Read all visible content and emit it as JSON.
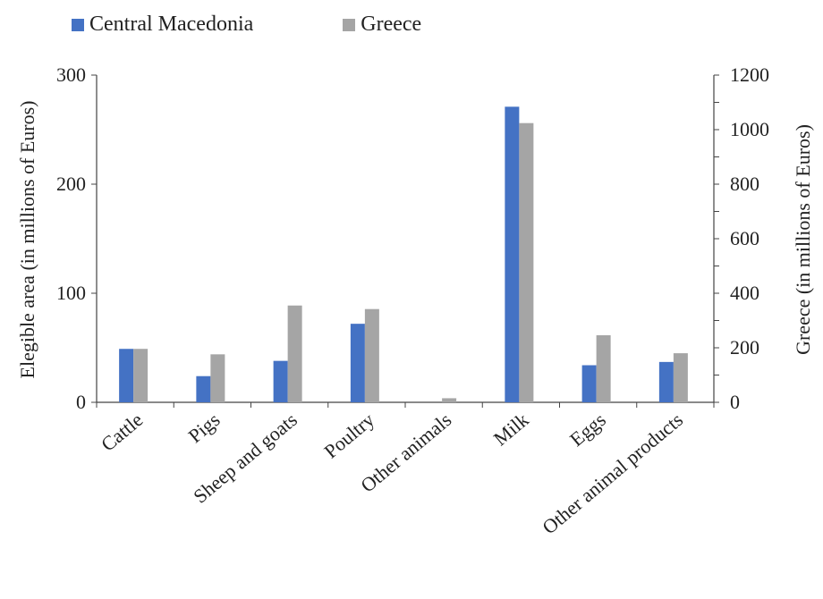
{
  "chart_data": {
    "type": "bar",
    "categories": [
      "Cattle",
      "Pigs",
      "Sheep and goats",
      "Poultry",
      "Other animals",
      "Milk",
      "Eggs",
      "Other animal products"
    ],
    "series": [
      {
        "name": "Central Macedonia",
        "axis": "left",
        "color": "#4472c4",
        "values": [
          49,
          24,
          38,
          72,
          0,
          271,
          34,
          37
        ]
      },
      {
        "name": "Greece",
        "axis": "right",
        "color": "#a5a5a5",
        "values": [
          196,
          176,
          355,
          342,
          15,
          1024,
          246,
          180
        ]
      }
    ],
    "ylabel": "Elegible area (in millions of Euros)",
    "y2label": "Greece (in millions of Euros)",
    "ylim": [
      0,
      300
    ],
    "y2lim": [
      0,
      1200
    ],
    "yticks": [
      "0",
      "100",
      "200",
      "300"
    ],
    "y2ticks": [
      "0",
      "200",
      "400",
      "600",
      "800",
      "1000",
      "1200"
    ],
    "legend": "top-left",
    "grid": false
  }
}
